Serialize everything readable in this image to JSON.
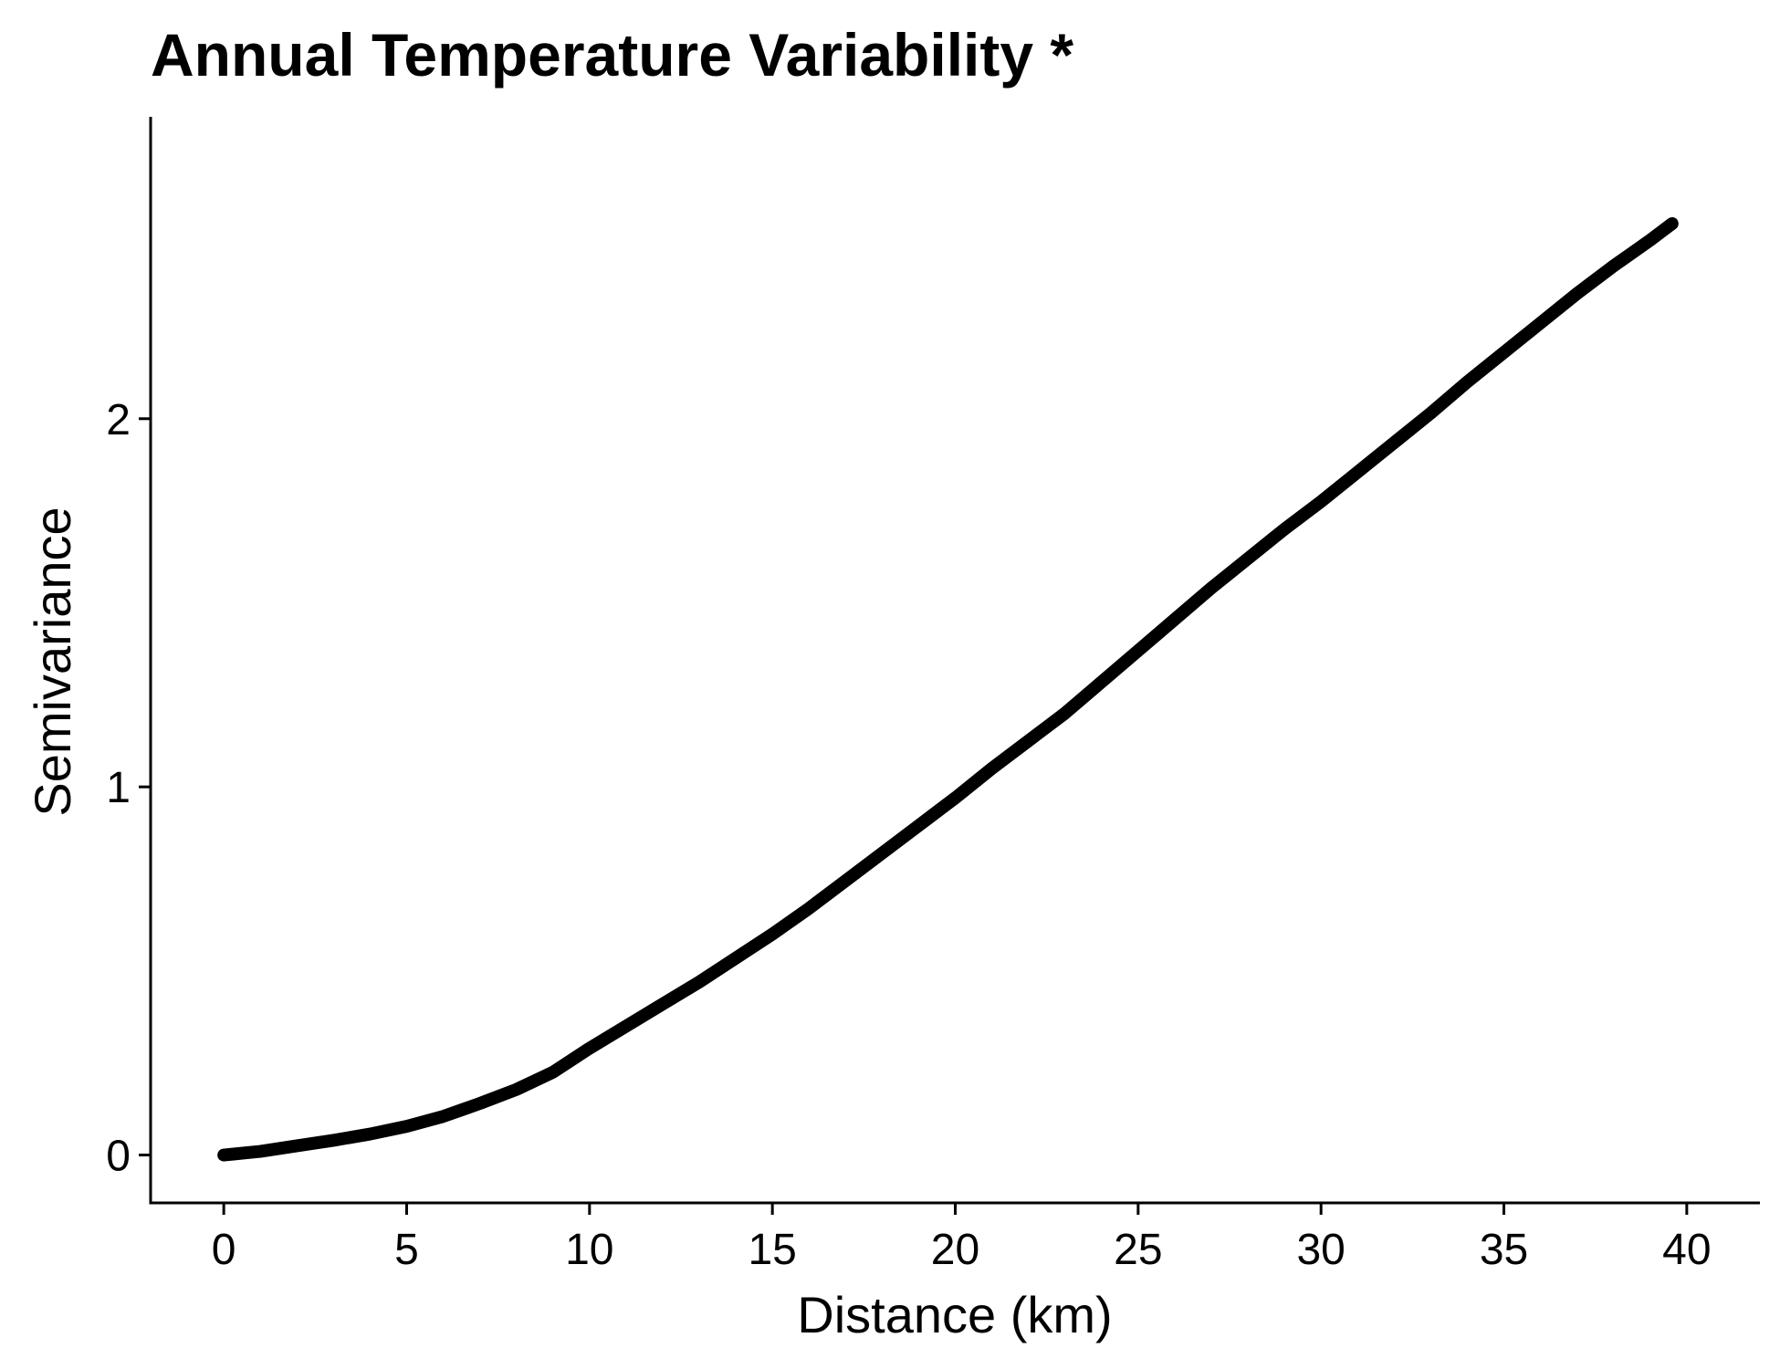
{
  "chart_data": {
    "type": "line",
    "title": "Annual Temperature Variability *",
    "xlabel": "Distance (km)",
    "ylabel": "Semivariance",
    "xlim": [
      -2,
      42
    ],
    "ylim": [
      -0.13,
      2.82
    ],
    "x_ticks": [
      0,
      5,
      10,
      15,
      20,
      25,
      30,
      35,
      40
    ],
    "y_ticks": [
      0,
      1,
      2
    ],
    "x_tick_labels": [
      "0",
      "5",
      "10",
      "15",
      "20",
      "25",
      "30",
      "35",
      "40"
    ],
    "y_tick_labels": [
      "0",
      "1",
      "2"
    ],
    "grid": false,
    "legend": "none",
    "line_color": "#000000",
    "series": [
      {
        "x": [
          0,
          1,
          2,
          3,
          4,
          5,
          6,
          7,
          8,
          9,
          10,
          11,
          12,
          13,
          14,
          15,
          16,
          17,
          18,
          19,
          20,
          21,
          22,
          23,
          24,
          25,
          26,
          27,
          28,
          29,
          30,
          31,
          32,
          33,
          34,
          35,
          36,
          37,
          38,
          39,
          39.6
        ],
        "y": [
          0,
          0.01,
          0.025,
          0.04,
          0.057,
          0.078,
          0.105,
          0.14,
          0.178,
          0.225,
          0.29,
          0.35,
          0.41,
          0.47,
          0.535,
          0.6,
          0.67,
          0.745,
          0.82,
          0.895,
          0.97,
          1.05,
          1.125,
          1.2,
          1.285,
          1.37,
          1.455,
          1.54,
          1.62,
          1.7,
          1.775,
          1.855,
          1.935,
          2.015,
          2.1,
          2.18,
          2.26,
          2.34,
          2.415,
          2.485,
          2.53
        ]
      }
    ]
  }
}
